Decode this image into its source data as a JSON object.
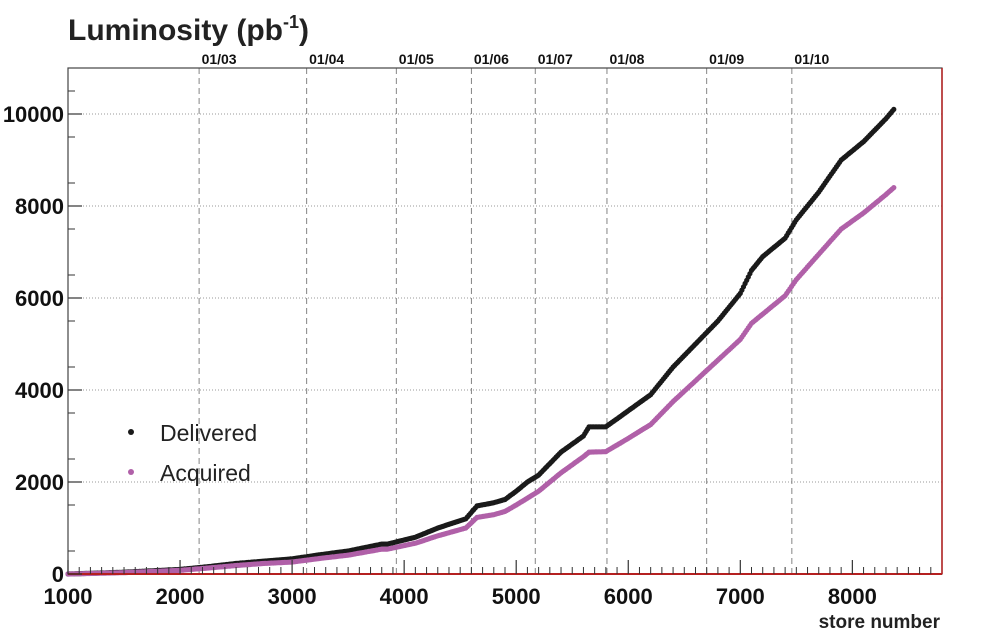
{
  "chart_data": {
    "type": "scatter",
    "title": "Luminosity (pb",
    "title_superscript": "-1",
    "title_close": ")",
    "xlabel": "store number",
    "ylabel": "",
    "xlim": [
      1000,
      8800
    ],
    "ylim": [
      0,
      11000
    ],
    "x_ticks": [
      1000,
      2000,
      3000,
      4000,
      5000,
      6000,
      7000,
      8000
    ],
    "x_tick_labels": [
      "1000",
      "2000",
      "3000",
      "4000",
      "5000",
      "6000",
      "7000",
      "8000"
    ],
    "y_ticks": [
      0,
      2000,
      4000,
      6000,
      8000,
      10000
    ],
    "y_tick_labels": [
      "0",
      "2000",
      "4000",
      "6000",
      "8000",
      "10000"
    ],
    "date_markers": [
      {
        "x": 2170,
        "label": "01/03"
      },
      {
        "x": 3130,
        "label": "01/04"
      },
      {
        "x": 3930,
        "label": "01/05"
      },
      {
        "x": 4600,
        "label": "01/06"
      },
      {
        "x": 5170,
        "label": "01/07"
      },
      {
        "x": 5810,
        "label": "01/08"
      },
      {
        "x": 6700,
        "label": "01/09"
      },
      {
        "x": 7460,
        "label": "01/10"
      }
    ],
    "legend_position": "middle-left",
    "series": [
      {
        "name": "Delivered",
        "color": "#1a1a1a",
        "x": [
          1000,
          1250,
          1500,
          1750,
          2000,
          2250,
          2500,
          2750,
          3000,
          3250,
          3500,
          3800,
          3850,
          4100,
          4300,
          4550,
          4650,
          4800,
          4900,
          5000,
          5100,
          5200,
          5400,
          5600,
          5650,
          5800,
          6000,
          6200,
          6400,
          6600,
          6800,
          7000,
          7100,
          7200,
          7400,
          7500,
          7700,
          7900,
          8100,
          8300,
          8370
        ],
        "values": [
          0,
          20,
          40,
          70,
          100,
          160,
          230,
          280,
          330,
          420,
          500,
          650,
          650,
          800,
          1000,
          1200,
          1480,
          1550,
          1620,
          1800,
          2000,
          2150,
          2650,
          3000,
          3200,
          3200,
          3550,
          3900,
          4500,
          5000,
          5500,
          6100,
          6600,
          6900,
          7300,
          7700,
          8300,
          9000,
          9400,
          9900,
          10100
        ]
      },
      {
        "name": "Acquired",
        "color": "#b060a8",
        "x": [
          1000,
          1250,
          1500,
          1750,
          2000,
          2250,
          2500,
          2750,
          3000,
          3250,
          3500,
          3800,
          3850,
          4100,
          4300,
          4550,
          4650,
          4800,
          4900,
          5000,
          5100,
          5200,
          5400,
          5600,
          5650,
          5800,
          6000,
          6200,
          6400,
          6600,
          6800,
          7000,
          7100,
          7200,
          7400,
          7500,
          7700,
          7900,
          8100,
          8300,
          8370
        ],
        "values": [
          0,
          15,
          30,
          55,
          80,
          130,
          185,
          230,
          260,
          340,
          410,
          540,
          540,
          670,
          830,
          1000,
          1230,
          1290,
          1360,
          1500,
          1650,
          1800,
          2200,
          2550,
          2650,
          2660,
          2950,
          3250,
          3750,
          4200,
          4650,
          5100,
          5450,
          5650,
          6050,
          6400,
          6950,
          7500,
          7850,
          8250,
          8400
        ]
      }
    ]
  }
}
